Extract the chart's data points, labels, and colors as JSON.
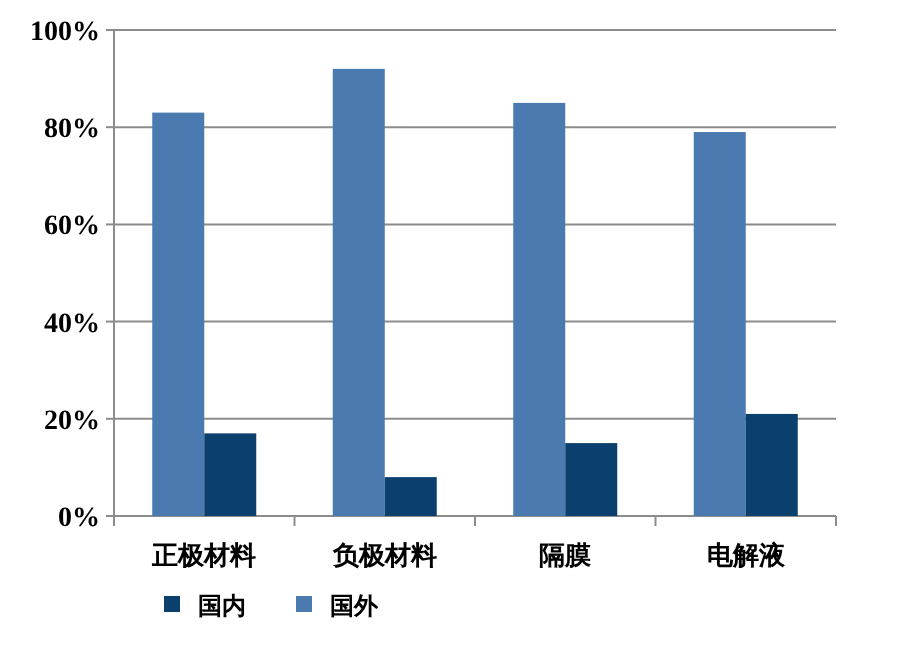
{
  "chart_data": {
    "type": "bar",
    "categories": [
      "正极材料",
      "负极材料",
      "隔膜",
      "电解液"
    ],
    "series": [
      {
        "name": "国外",
        "color": "#4a7ab0",
        "values": [
          83,
          92,
          85,
          79
        ]
      },
      {
        "name": "国内",
        "color": "#0a3f6e",
        "values": [
          17,
          8,
          15,
          21
        ]
      }
    ],
    "ylim": [
      0,
      100
    ],
    "yticks": [
      {
        "value": 0,
        "label": "0%"
      },
      {
        "value": 20,
        "label": "20%"
      },
      {
        "value": 40,
        "label": "40%"
      },
      {
        "value": 60,
        "label": "60%"
      },
      {
        "value": 80,
        "label": "80%"
      },
      {
        "value": 100,
        "label": "100%"
      }
    ],
    "grid": "y",
    "legend": "bottom"
  }
}
